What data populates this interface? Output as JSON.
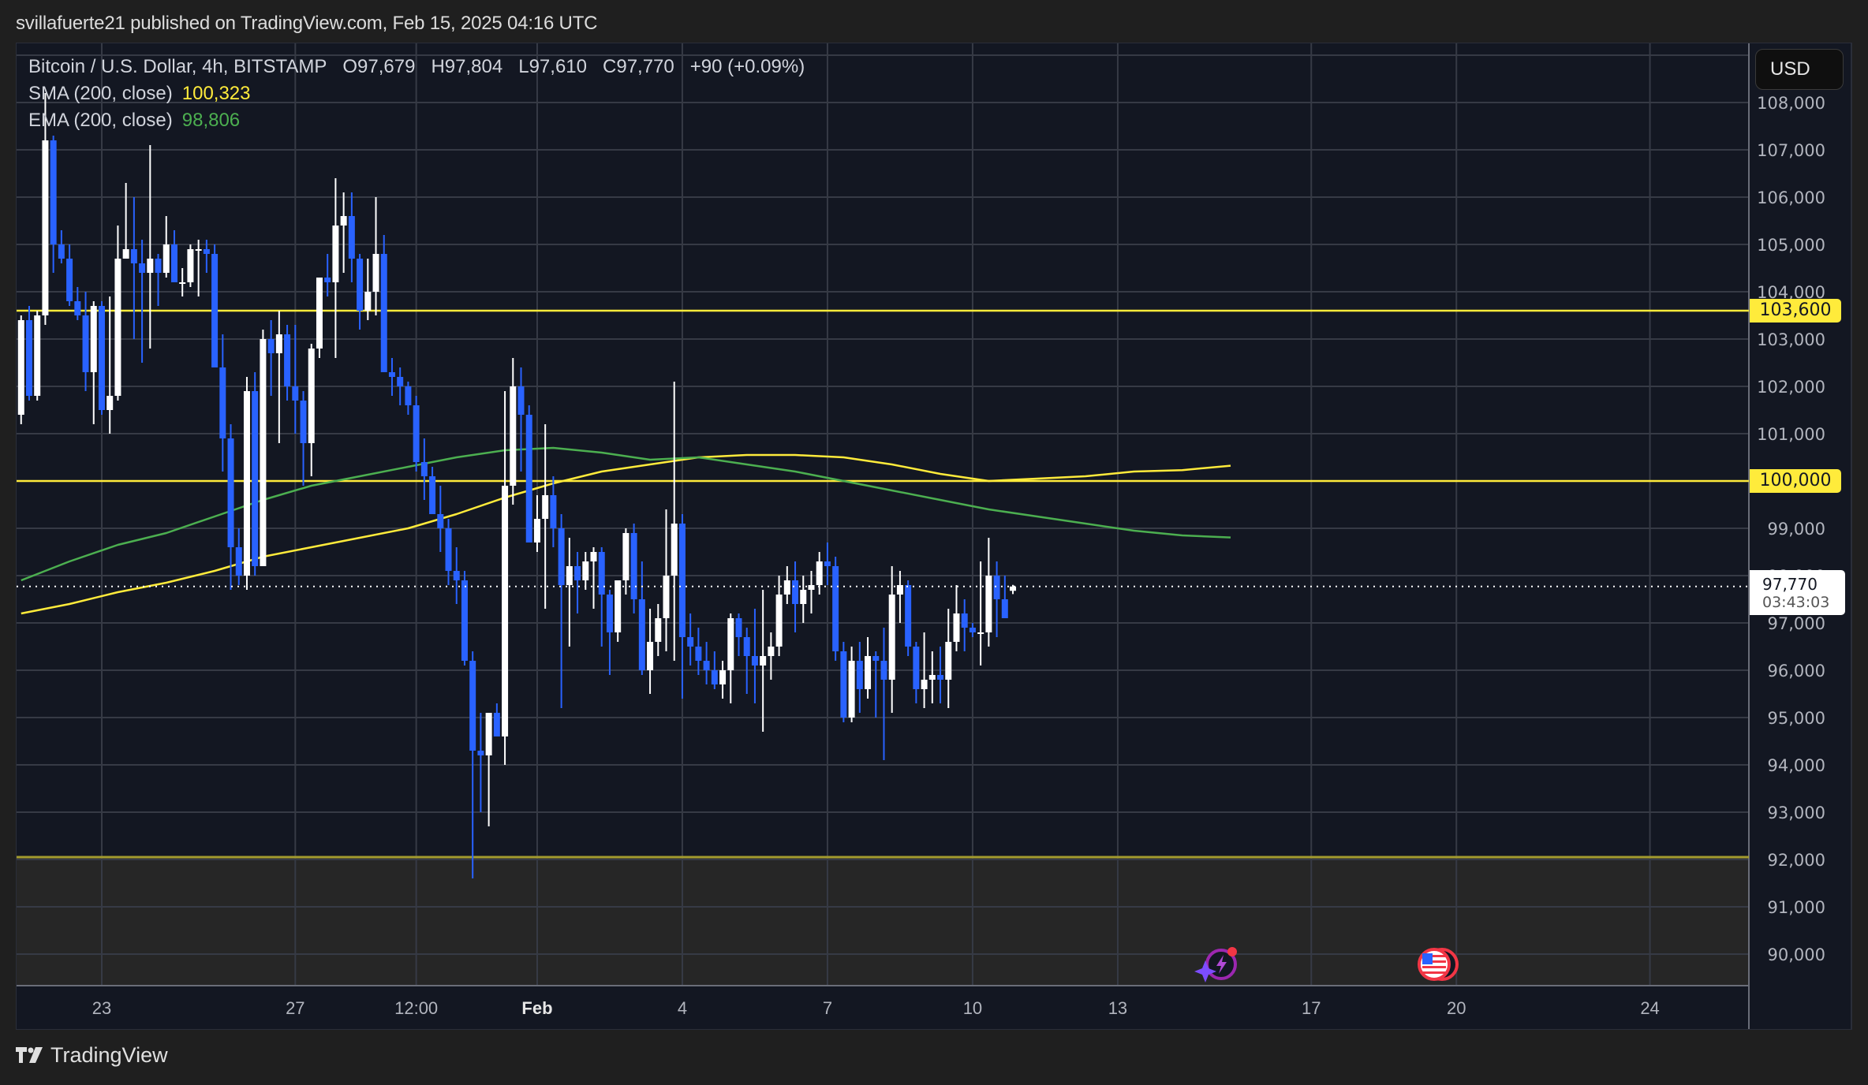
{
  "header": {
    "publish_line": "svillafuerte21 published on TradingView.com, Feb 15, 2025 04:16 UTC"
  },
  "legend": {
    "symbol": "Bitcoin / U.S. Dollar, 4h, BITSTAMP",
    "open_label": "O",
    "open": "97,679",
    "high_label": "H",
    "high": "97,804",
    "low_label": "L",
    "low": "97,610",
    "close_label": "C",
    "close": "97,770",
    "change": "+90 (+0.09%)",
    "sma_label": "SMA (200, close)",
    "sma_value": "100,323",
    "ema_label": "EMA (200, close)",
    "ema_value": "98,806"
  },
  "price_axis": {
    "currency_button": "USD",
    "last_price": "97,770",
    "countdown": "03:43:03",
    "level_tags": [
      {
        "label": "103,600",
        "price": 103600
      },
      {
        "label": "100,000",
        "price": 100000
      }
    ]
  },
  "branding": {
    "logo_text": "TradingView"
  },
  "colors": {
    "background": "#131722",
    "outer": "#1f1f1f",
    "grid": "#2a2e39",
    "up_candle": "#ffffff",
    "down_candle": "#2962ff",
    "sma": "#ffeb3b",
    "ema": "#4caf50",
    "level_line": "#ffeb3b",
    "support_zone": "#262626",
    "support_line": "#a39b2e"
  },
  "events": [
    {
      "icon": "lightning-sparkle-icon",
      "x_label": "Feb 15"
    },
    {
      "icon": "us-flag-icon",
      "x_label": "Feb 19"
    }
  ],
  "chart_data": {
    "type": "candlestick",
    "title": "Bitcoin / U.S. Dollar, 4h, BITSTAMP",
    "xlabel": "",
    "ylabel": "USD",
    "ylim": [
      89300,
      109400
    ],
    "y_ticks": [
      90000,
      91000,
      92000,
      93000,
      94000,
      95000,
      96000,
      97000,
      98000,
      99000,
      100000,
      101000,
      102000,
      103000,
      104000,
      105000,
      106000,
      107000,
      108000
    ],
    "x_ticks": [
      {
        "label": "23",
        "day_offset": 2,
        "bold": false
      },
      {
        "label": "27",
        "day_offset": 6,
        "bold": false
      },
      {
        "label": "12:00",
        "day_offset": 8.5,
        "bold": false
      },
      {
        "label": "Feb",
        "day_offset": 11,
        "bold": true
      },
      {
        "label": "4",
        "day_offset": 14,
        "bold": false
      },
      {
        "label": "7",
        "day_offset": 17,
        "bold": false
      },
      {
        "label": "10",
        "day_offset": 20,
        "bold": false
      },
      {
        "label": "13",
        "day_offset": 23,
        "bold": false
      },
      {
        "label": "17",
        "day_offset": 27,
        "bold": false
      },
      {
        "label": "20",
        "day_offset": 30,
        "bold": false
      },
      {
        "label": "24",
        "day_offset": 34,
        "bold": false
      }
    ],
    "x_origin": "Jan 21 00:00 (day_offset 0)",
    "candle_interval_hours": 4,
    "first_candle_day_offset": 0.333,
    "horizontal_levels": [
      103600,
      100000
    ],
    "support_zone": {
      "top": 92050,
      "bottom": 89300
    },
    "last_price": 97770,
    "candles": [
      [
        101400,
        103500,
        101200,
        103400
      ],
      [
        103400,
        103700,
        101700,
        101800
      ],
      [
        101800,
        103600,
        101700,
        103500
      ],
      [
        103500,
        108200,
        103300,
        107200
      ],
      [
        107200,
        107300,
        104400,
        105000
      ],
      [
        105000,
        105300,
        104600,
        104700
      ],
      [
        104700,
        105000,
        103700,
        103800
      ],
      [
        103800,
        104100,
        103400,
        103500
      ],
      [
        103500,
        104000,
        101900,
        102300
      ],
      [
        102300,
        103800,
        101200,
        103700
      ],
      [
        103700,
        103800,
        101400,
        101500
      ],
      [
        101500,
        103900,
        101000,
        101800
      ],
      [
        101800,
        105400,
        101700,
        104700
      ],
      [
        104700,
        106300,
        104700,
        104900
      ],
      [
        104900,
        106000,
        103000,
        104600
      ],
      [
        104600,
        105100,
        102500,
        104400
      ],
      [
        104400,
        107100,
        102800,
        104700
      ],
      [
        104700,
        104800,
        103700,
        104400
      ],
      [
        104400,
        105600,
        104300,
        105000
      ],
      [
        105000,
        105300,
        104200,
        104200
      ],
      [
        104200,
        104500,
        103900,
        104200
      ],
      [
        104200,
        105000,
        104100,
        104900
      ],
      [
        104900,
        105100,
        103900,
        104900
      ],
      [
        104900,
        105100,
        104400,
        104800
      ],
      [
        104800,
        105000,
        103400,
        102400
      ],
      [
        102400,
        103100,
        100200,
        100900
      ],
      [
        100900,
        101200,
        97700,
        98600
      ],
      [
        98600,
        99000,
        97800,
        98000
      ],
      [
        98000,
        102200,
        97700,
        101900
      ],
      [
        101900,
        102300,
        98000,
        98200
      ],
      [
        98200,
        103200,
        98400,
        103000
      ],
      [
        103000,
        103400,
        101800,
        102700
      ],
      [
        102700,
        103600,
        100800,
        103100
      ],
      [
        103100,
        103300,
        101700,
        102000
      ],
      [
        102000,
        103300,
        101000,
        101700
      ],
      [
        101700,
        101900,
        99900,
        100800
      ],
      [
        100800,
        102900,
        100100,
        102800
      ],
      [
        102800,
        104100,
        102600,
        104300
      ],
      [
        104300,
        104800,
        103900,
        104200
      ],
      [
        104200,
        106400,
        102600,
        105400
      ],
      [
        105400,
        106100,
        104400,
        105600
      ],
      [
        105600,
        106100,
        104200,
        104700
      ],
      [
        104700,
        104800,
        103200,
        103600
      ],
      [
        103600,
        104700,
        103400,
        104000
      ],
      [
        104000,
        106000,
        103500,
        104800
      ],
      [
        104800,
        105200,
        102700,
        102300
      ],
      [
        102300,
        102600,
        101800,
        102200
      ],
      [
        102200,
        102400,
        101600,
        102000
      ],
      [
        102000,
        102100,
        101400,
        101600
      ],
      [
        101600,
        101800,
        100200,
        100400
      ],
      [
        100400,
        100900,
        99600,
        100100
      ],
      [
        100100,
        100300,
        99300,
        99300
      ],
      [
        99300,
        99900,
        98500,
        99000
      ],
      [
        99000,
        99200,
        97800,
        98100
      ],
      [
        98100,
        98600,
        97400,
        97900
      ],
      [
        97900,
        98100,
        96100,
        96200
      ],
      [
        96200,
        96400,
        91600,
        94300
      ],
      [
        94300,
        95100,
        93000,
        94200
      ],
      [
        94200,
        94500,
        92700,
        95100
      ],
      [
        95100,
        95300,
        94900,
        94600
      ],
      [
        94600,
        101900,
        94000,
        99900
      ],
      [
        99900,
        102600,
        99500,
        102000
      ],
      [
        102000,
        102400,
        100200,
        101400
      ],
      [
        101400,
        101600,
        99100,
        98700
      ],
      [
        98700,
        99700,
        98500,
        99200
      ],
      [
        99200,
        101200,
        97300,
        99700
      ],
      [
        99700,
        100100,
        98600,
        99000
      ],
      [
        99000,
        99300,
        95200,
        97800
      ],
      [
        97800,
        98800,
        96500,
        98200
      ],
      [
        98200,
        98500,
        97200,
        97900
      ],
      [
        97900,
        98500,
        97700,
        98300
      ],
      [
        98300,
        98600,
        97300,
        98500
      ],
      [
        98500,
        98600,
        96500,
        97600
      ],
      [
        97600,
        97700,
        95900,
        96800
      ],
      [
        96800,
        97900,
        96600,
        97900
      ],
      [
        97900,
        99000,
        97600,
        98900
      ],
      [
        98900,
        99100,
        97200,
        97500
      ],
      [
        97500,
        98300,
        95900,
        96000
      ],
      [
        96000,
        97300,
        95500,
        96600
      ],
      [
        96600,
        97400,
        96300,
        97100
      ],
      [
        97100,
        99400,
        96400,
        98000
      ],
      [
        98000,
        102100,
        96200,
        99100
      ],
      [
        99100,
        99300,
        95400,
        96700
      ],
      [
        96700,
        97200,
        96100,
        96500
      ],
      [
        96500,
        96900,
        95900,
        96200
      ],
      [
        96200,
        96600,
        95700,
        96000
      ],
      [
        96000,
        96400,
        95600,
        95700
      ],
      [
        95700,
        96200,
        95400,
        96000
      ],
      [
        96000,
        97200,
        95300,
        97100
      ],
      [
        97100,
        97200,
        96300,
        96700
      ],
      [
        96700,
        96900,
        95500,
        96300
      ],
      [
        96300,
        97300,
        95300,
        96100
      ],
      [
        96100,
        97700,
        94700,
        96300
      ],
      [
        96300,
        96800,
        95800,
        96500
      ],
      [
        96500,
        98000,
        96300,
        97600
      ],
      [
        97600,
        98200,
        97400,
        97900
      ],
      [
        97900,
        98300,
        96800,
        97400
      ],
      [
        97400,
        98000,
        97000,
        97700
      ],
      [
        97700,
        98100,
        97200,
        97800
      ],
      [
        97800,
        98500,
        97600,
        98300
      ],
      [
        98300,
        98700,
        97800,
        98200
      ],
      [
        98200,
        98400,
        96200,
        96400
      ],
      [
        96400,
        96600,
        94900,
        95000
      ],
      [
        95000,
        96500,
        94900,
        96200
      ],
      [
        96200,
        96600,
        95100,
        95600
      ],
      [
        95600,
        96700,
        95400,
        96300
      ],
      [
        96300,
        96400,
        95000,
        96200
      ],
      [
        96200,
        96900,
        94100,
        95800
      ],
      [
        95800,
        98200,
        95100,
        97600
      ],
      [
        97600,
        98100,
        97000,
        97800
      ],
      [
        97800,
        97900,
        96300,
        96500
      ],
      [
        96500,
        96600,
        95300,
        95600
      ],
      [
        95600,
        96800,
        95200,
        95800
      ],
      [
        95800,
        96400,
        95300,
        95900
      ],
      [
        95900,
        96500,
        95300,
        95800
      ],
      [
        95800,
        97300,
        95200,
        96600
      ],
      [
        96600,
        97800,
        96400,
        97200
      ],
      [
        97200,
        97500,
        96400,
        96900
      ],
      [
        96900,
        97000,
        96700,
        96800
      ],
      [
        96800,
        98300,
        96100,
        96800
      ],
      [
        96800,
        98800,
        96500,
        98000
      ],
      [
        98000,
        98300,
        96700,
        97500
      ],
      [
        97500,
        98000,
        97100,
        97100
      ],
      [
        97679,
        97804,
        97610,
        97770
      ]
    ],
    "series": [
      {
        "name": "SMA (200, close)",
        "color": "#ffeb3b",
        "last": 100323,
        "points": [
          [
            0.0,
            97200
          ],
          [
            1.0,
            97400
          ],
          [
            2.0,
            97650
          ],
          [
            3.0,
            97850
          ],
          [
            4.0,
            98100
          ],
          [
            5.0,
            98400
          ],
          [
            6.0,
            98600
          ],
          [
            7.0,
            98800
          ],
          [
            8.0,
            99000
          ],
          [
            9.0,
            99300
          ],
          [
            10.0,
            99650
          ],
          [
            11.0,
            99950
          ],
          [
            12.0,
            100200
          ],
          [
            13.0,
            100350
          ],
          [
            14.0,
            100500
          ],
          [
            15.0,
            100550
          ],
          [
            16.0,
            100550
          ],
          [
            17.0,
            100500
          ],
          [
            18.0,
            100350
          ],
          [
            19.0,
            100150
          ],
          [
            20.0,
            100000
          ],
          [
            21.0,
            100050
          ],
          [
            22.0,
            100100
          ],
          [
            23.0,
            100200
          ],
          [
            24.0,
            100230
          ],
          [
            25.0,
            100323
          ]
        ]
      },
      {
        "name": "EMA (200, close)",
        "color": "#4caf50",
        "last": 98806,
        "points": [
          [
            0.0,
            97900
          ],
          [
            1.0,
            98300
          ],
          [
            2.0,
            98650
          ],
          [
            3.0,
            98900
          ],
          [
            4.0,
            99250
          ],
          [
            5.0,
            99600
          ],
          [
            6.0,
            99900
          ],
          [
            7.0,
            100100
          ],
          [
            8.0,
            100300
          ],
          [
            9.0,
            100500
          ],
          [
            10.0,
            100650
          ],
          [
            11.0,
            100700
          ],
          [
            12.0,
            100600
          ],
          [
            13.0,
            100450
          ],
          [
            14.0,
            100500
          ],
          [
            15.0,
            100350
          ],
          [
            16.0,
            100200
          ],
          [
            17.0,
            100000
          ],
          [
            18.0,
            99800
          ],
          [
            19.0,
            99600
          ],
          [
            20.0,
            99400
          ],
          [
            21.0,
            99250
          ],
          [
            22.0,
            99100
          ],
          [
            23.0,
            98950
          ],
          [
            24.0,
            98850
          ],
          [
            25.0,
            98806
          ]
        ]
      }
    ]
  }
}
